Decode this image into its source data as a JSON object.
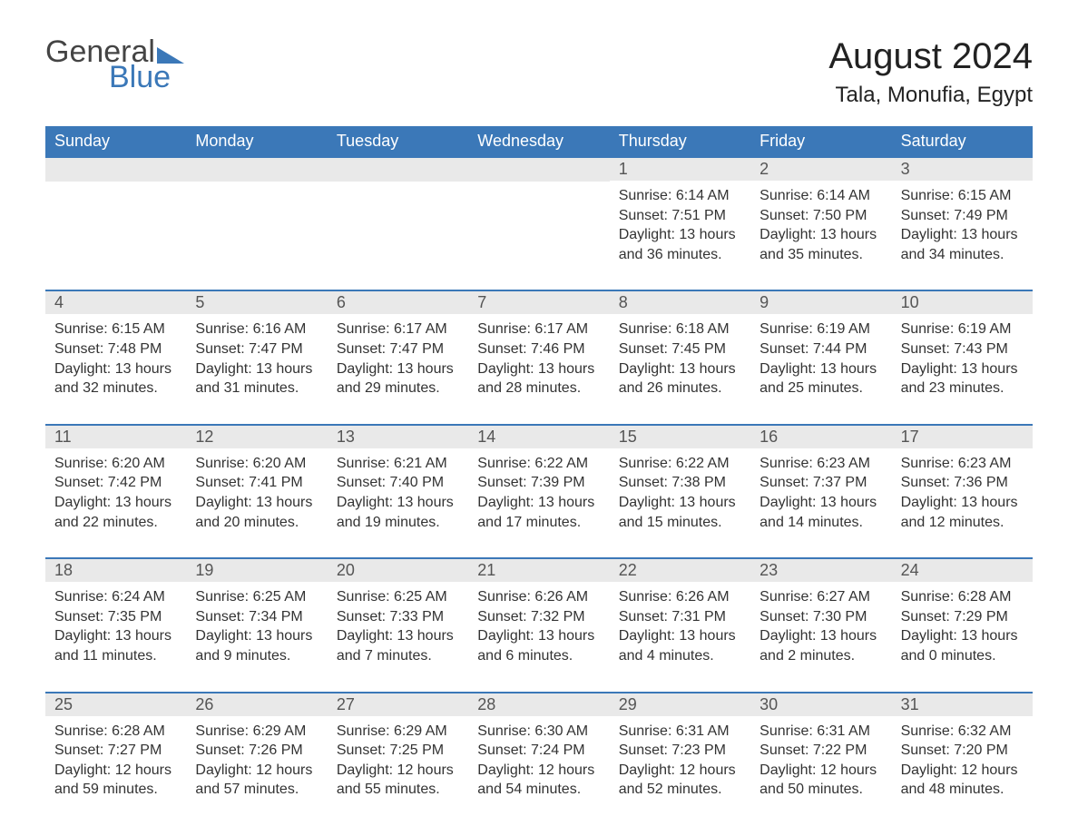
{
  "logo": {
    "word1": "General",
    "word2": "Blue"
  },
  "title": "August 2024",
  "location": "Tala, Monufia, Egypt",
  "colors": {
    "header_bg": "#3b78b8",
    "header_text": "#ffffff",
    "daynum_bg": "#e9e9e9",
    "daynum_text": "#555555",
    "body_text": "#333333",
    "page_bg": "#ffffff",
    "week_divider": "#3b78b8",
    "logo_gray": "#444444",
    "logo_blue": "#3b78b8"
  },
  "typography": {
    "title_fontsize": 40,
    "location_fontsize": 24,
    "dow_fontsize": 18,
    "daynum_fontsize": 18,
    "body_fontsize": 16
  },
  "days_of_week": [
    "Sunday",
    "Monday",
    "Tuesday",
    "Wednesday",
    "Thursday",
    "Friday",
    "Saturday"
  ],
  "weeks": [
    [
      null,
      null,
      null,
      null,
      {
        "n": "1",
        "sunrise": "Sunrise: 6:14 AM",
        "sunset": "Sunset: 7:51 PM",
        "daylight": "Daylight: 13 hours and 36 minutes."
      },
      {
        "n": "2",
        "sunrise": "Sunrise: 6:14 AM",
        "sunset": "Sunset: 7:50 PM",
        "daylight": "Daylight: 13 hours and 35 minutes."
      },
      {
        "n": "3",
        "sunrise": "Sunrise: 6:15 AM",
        "sunset": "Sunset: 7:49 PM",
        "daylight": "Daylight: 13 hours and 34 minutes."
      }
    ],
    [
      {
        "n": "4",
        "sunrise": "Sunrise: 6:15 AM",
        "sunset": "Sunset: 7:48 PM",
        "daylight": "Daylight: 13 hours and 32 minutes."
      },
      {
        "n": "5",
        "sunrise": "Sunrise: 6:16 AM",
        "sunset": "Sunset: 7:47 PM",
        "daylight": "Daylight: 13 hours and 31 minutes."
      },
      {
        "n": "6",
        "sunrise": "Sunrise: 6:17 AM",
        "sunset": "Sunset: 7:47 PM",
        "daylight": "Daylight: 13 hours and 29 minutes."
      },
      {
        "n": "7",
        "sunrise": "Sunrise: 6:17 AM",
        "sunset": "Sunset: 7:46 PM",
        "daylight": "Daylight: 13 hours and 28 minutes."
      },
      {
        "n": "8",
        "sunrise": "Sunrise: 6:18 AM",
        "sunset": "Sunset: 7:45 PM",
        "daylight": "Daylight: 13 hours and 26 minutes."
      },
      {
        "n": "9",
        "sunrise": "Sunrise: 6:19 AM",
        "sunset": "Sunset: 7:44 PM",
        "daylight": "Daylight: 13 hours and 25 minutes."
      },
      {
        "n": "10",
        "sunrise": "Sunrise: 6:19 AM",
        "sunset": "Sunset: 7:43 PM",
        "daylight": "Daylight: 13 hours and 23 minutes."
      }
    ],
    [
      {
        "n": "11",
        "sunrise": "Sunrise: 6:20 AM",
        "sunset": "Sunset: 7:42 PM",
        "daylight": "Daylight: 13 hours and 22 minutes."
      },
      {
        "n": "12",
        "sunrise": "Sunrise: 6:20 AM",
        "sunset": "Sunset: 7:41 PM",
        "daylight": "Daylight: 13 hours and 20 minutes."
      },
      {
        "n": "13",
        "sunrise": "Sunrise: 6:21 AM",
        "sunset": "Sunset: 7:40 PM",
        "daylight": "Daylight: 13 hours and 19 minutes."
      },
      {
        "n": "14",
        "sunrise": "Sunrise: 6:22 AM",
        "sunset": "Sunset: 7:39 PM",
        "daylight": "Daylight: 13 hours and 17 minutes."
      },
      {
        "n": "15",
        "sunrise": "Sunrise: 6:22 AM",
        "sunset": "Sunset: 7:38 PM",
        "daylight": "Daylight: 13 hours and 15 minutes."
      },
      {
        "n": "16",
        "sunrise": "Sunrise: 6:23 AM",
        "sunset": "Sunset: 7:37 PM",
        "daylight": "Daylight: 13 hours and 14 minutes."
      },
      {
        "n": "17",
        "sunrise": "Sunrise: 6:23 AM",
        "sunset": "Sunset: 7:36 PM",
        "daylight": "Daylight: 13 hours and 12 minutes."
      }
    ],
    [
      {
        "n": "18",
        "sunrise": "Sunrise: 6:24 AM",
        "sunset": "Sunset: 7:35 PM",
        "daylight": "Daylight: 13 hours and 11 minutes."
      },
      {
        "n": "19",
        "sunrise": "Sunrise: 6:25 AM",
        "sunset": "Sunset: 7:34 PM",
        "daylight": "Daylight: 13 hours and 9 minutes."
      },
      {
        "n": "20",
        "sunrise": "Sunrise: 6:25 AM",
        "sunset": "Sunset: 7:33 PM",
        "daylight": "Daylight: 13 hours and 7 minutes."
      },
      {
        "n": "21",
        "sunrise": "Sunrise: 6:26 AM",
        "sunset": "Sunset: 7:32 PM",
        "daylight": "Daylight: 13 hours and 6 minutes."
      },
      {
        "n": "22",
        "sunrise": "Sunrise: 6:26 AM",
        "sunset": "Sunset: 7:31 PM",
        "daylight": "Daylight: 13 hours and 4 minutes."
      },
      {
        "n": "23",
        "sunrise": "Sunrise: 6:27 AM",
        "sunset": "Sunset: 7:30 PM",
        "daylight": "Daylight: 13 hours and 2 minutes."
      },
      {
        "n": "24",
        "sunrise": "Sunrise: 6:28 AM",
        "sunset": "Sunset: 7:29 PM",
        "daylight": "Daylight: 13 hours and 0 minutes."
      }
    ],
    [
      {
        "n": "25",
        "sunrise": "Sunrise: 6:28 AM",
        "sunset": "Sunset: 7:27 PM",
        "daylight": "Daylight: 12 hours and 59 minutes."
      },
      {
        "n": "26",
        "sunrise": "Sunrise: 6:29 AM",
        "sunset": "Sunset: 7:26 PM",
        "daylight": "Daylight: 12 hours and 57 minutes."
      },
      {
        "n": "27",
        "sunrise": "Sunrise: 6:29 AM",
        "sunset": "Sunset: 7:25 PM",
        "daylight": "Daylight: 12 hours and 55 minutes."
      },
      {
        "n": "28",
        "sunrise": "Sunrise: 6:30 AM",
        "sunset": "Sunset: 7:24 PM",
        "daylight": "Daylight: 12 hours and 54 minutes."
      },
      {
        "n": "29",
        "sunrise": "Sunrise: 6:31 AM",
        "sunset": "Sunset: 7:23 PM",
        "daylight": "Daylight: 12 hours and 52 minutes."
      },
      {
        "n": "30",
        "sunrise": "Sunrise: 6:31 AM",
        "sunset": "Sunset: 7:22 PM",
        "daylight": "Daylight: 12 hours and 50 minutes."
      },
      {
        "n": "31",
        "sunrise": "Sunrise: 6:32 AM",
        "sunset": "Sunset: 7:20 PM",
        "daylight": "Daylight: 12 hours and 48 minutes."
      }
    ]
  ]
}
